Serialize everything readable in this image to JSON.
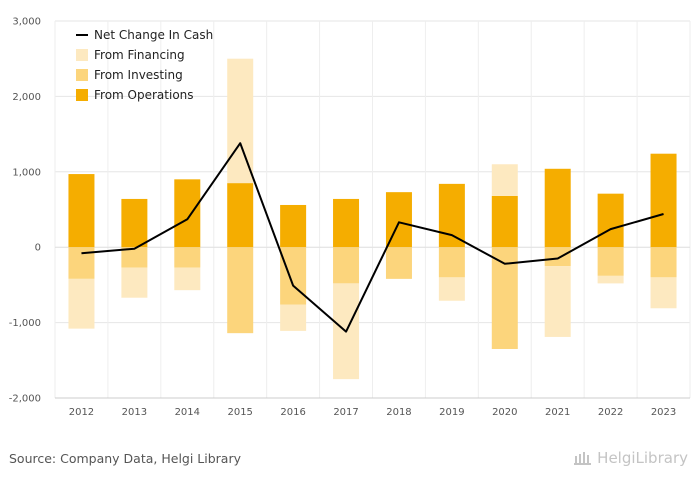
{
  "chart_data": {
    "type": "bar",
    "stacked": true,
    "categories": [
      "2012",
      "2013",
      "2014",
      "2015",
      "2016",
      "2017",
      "2018",
      "2019",
      "2020",
      "2021",
      "2022",
      "2023"
    ],
    "series": [
      {
        "name": "From Operations",
        "color": "#f5ad00",
        "values": [
          970,
          640,
          900,
          850,
          560,
          640,
          730,
          840,
          680,
          1040,
          710,
          1240
        ]
      },
      {
        "name": "From Investing",
        "color": "#fcd57c",
        "values": [
          -420,
          -270,
          -270,
          -1140,
          -760,
          -480,
          -420,
          -400,
          -1350,
          -250,
          -380,
          -400
        ]
      },
      {
        "name": "From Financing",
        "color": "#fde9c0",
        "values": [
          -660,
          -400,
          -300,
          1650,
          -350,
          -1270,
          0,
          -310,
          420,
          -940,
          -100,
          -410
        ]
      },
      {
        "name": "Net Change In Cash",
        "type": "line",
        "color": "#000000",
        "values": [
          -80,
          -20,
          370,
          1380,
          -510,
          -1120,
          330,
          160,
          -220,
          -150,
          240,
          440
        ]
      }
    ],
    "legend_order": [
      "Net Change In Cash",
      "From Financing",
      "From Investing",
      "From Operations"
    ],
    "ylim": [
      -2000,
      3000
    ],
    "yticks": [
      3000,
      2000,
      1000,
      0,
      -1000,
      -2000
    ],
    "ytick_labels": [
      "3,000",
      "2,000",
      "1,000",
      "0",
      "-1,000",
      "-2,000"
    ],
    "grid": true,
    "legend_position": "top-left",
    "title": "",
    "xlabel": "",
    "ylabel": ""
  },
  "footer": {
    "source": "Source: Company Data, Helgi Library",
    "brand": "HelgiLibrary"
  }
}
